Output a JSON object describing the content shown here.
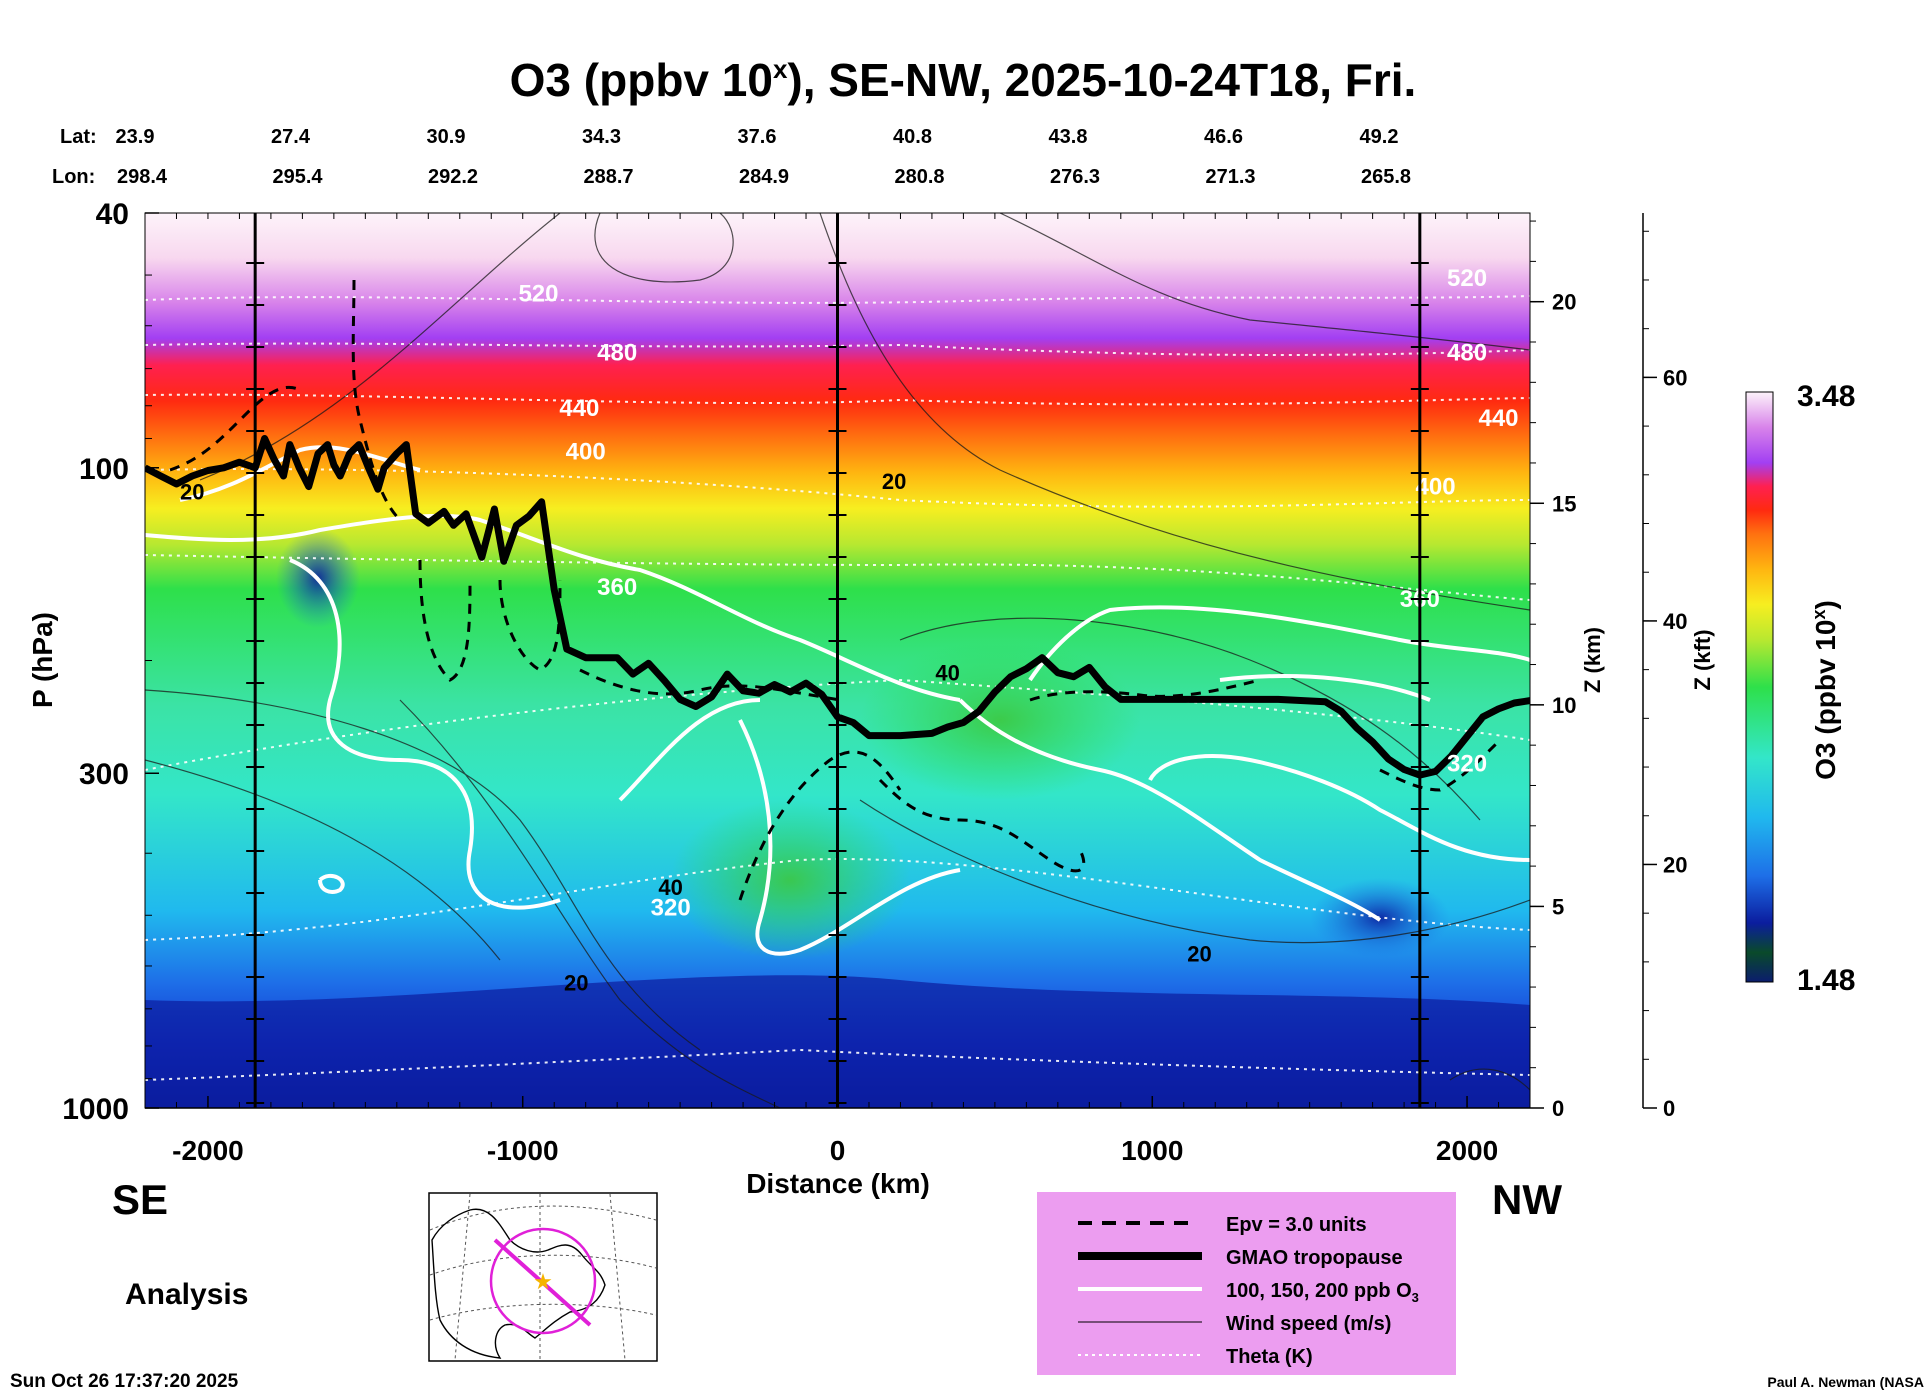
{
  "chart_data": {
    "type": "heatmap",
    "title": "O3 (ppbv 10",
    "title_sup": "x",
    "title_rest": "), SE-NW, 2025-10-24T18, Fri.",
    "xlabel": "Distance (km)",
    "ylabel": "P (hPa)",
    "y2label": "Z (km)",
    "y3label": "Z (kft)",
    "xlim": [
      -2200,
      2200
    ],
    "ylim_hpa": [
      1000,
      40
    ],
    "x_ticks": [
      {
        "value": -2000,
        "label": "-2000"
      },
      {
        "value": -1000,
        "label": "-1000"
      },
      {
        "value": 0,
        "label": "0"
      },
      {
        "value": 1000,
        "label": "1000"
      },
      {
        "value": 2000,
        "label": "2000"
      }
    ],
    "p_ticks": [
      {
        "value": 40,
        "label": "40"
      },
      {
        "value": 100,
        "label": "100"
      },
      {
        "value": 300,
        "label": "300"
      },
      {
        "value": 1000,
        "label": "1000"
      }
    ],
    "z_km_ticks": [
      {
        "value": 0,
        "label": "0"
      },
      {
        "value": 5,
        "label": "5"
      },
      {
        "value": 10,
        "label": "10"
      },
      {
        "value": 15,
        "label": "15"
      },
      {
        "value": 20,
        "label": "20"
      }
    ],
    "z_kft_ticks": [
      {
        "value": 0,
        "label": "0"
      },
      {
        "value": 20,
        "label": "20"
      },
      {
        "value": 40,
        "label": "40"
      },
      {
        "value": 60,
        "label": "60"
      }
    ],
    "lat_header": "Lat:",
    "lon_header": "Lon:",
    "lat": [
      "23.9",
      "27.4",
      "30.9",
      "34.3",
      "37.6",
      "40.8",
      "43.8",
      "46.6",
      "49.2"
    ],
    "lon": [
      "298.4",
      "295.4",
      "292.2",
      "288.7",
      "284.9",
      "280.8",
      "276.3",
      "271.3",
      "265.8"
    ],
    "vertical_markers_km": [
      -1850,
      0,
      1850
    ],
    "theta_labels": [
      {
        "x": -950,
        "p": 55,
        "label": "520"
      },
      {
        "x": -700,
        "p": 68,
        "label": "480"
      },
      {
        "x": -820,
        "p": 83,
        "label": "440"
      },
      {
        "x": -800,
        "p": 97,
        "label": "400"
      },
      {
        "x": -700,
        "p": 158,
        "label": "360"
      },
      {
        "x": -530,
        "p": 500,
        "label": "320"
      },
      {
        "x": 2000,
        "p": 52,
        "label": "520"
      },
      {
        "x": 2000,
        "p": 68,
        "label": "480"
      },
      {
        "x": 2100,
        "p": 86,
        "label": "440"
      },
      {
        "x": 1900,
        "p": 110,
        "label": "400"
      },
      {
        "x": 1850,
        "p": 165,
        "label": "360"
      },
      {
        "x": 2000,
        "p": 298,
        "label": "320"
      }
    ],
    "wind_labels": [
      {
        "x": -2050,
        "p": 112,
        "label": "20"
      },
      {
        "x": 180,
        "p": 108,
        "label": "20"
      },
      {
        "x": 350,
        "p": 215,
        "label": "40"
      },
      {
        "x": -530,
        "p": 465,
        "label": "40"
      },
      {
        "x": -830,
        "p": 655,
        "label": "20"
      },
      {
        "x": 1150,
        "p": 590,
        "label": "20"
      }
    ],
    "tropopause_hpa": [
      {
        "x": -2200,
        "p": 100
      },
      {
        "x": -2150,
        "p": 103
      },
      {
        "x": -2100,
        "p": 106
      },
      {
        "x": -2050,
        "p": 103
      },
      {
        "x": -2000,
        "p": 101
      },
      {
        "x": -1950,
        "p": 100
      },
      {
        "x": -1900,
        "p": 98
      },
      {
        "x": -1850,
        "p": 100
      },
      {
        "x": -1820,
        "p": 90
      },
      {
        "x": -1790,
        "p": 97
      },
      {
        "x": -1760,
        "p": 103
      },
      {
        "x": -1740,
        "p": 92
      },
      {
        "x": -1710,
        "p": 100
      },
      {
        "x": -1680,
        "p": 107
      },
      {
        "x": -1650,
        "p": 95
      },
      {
        "x": -1620,
        "p": 92
      },
      {
        "x": -1600,
        "p": 99
      },
      {
        "x": -1580,
        "p": 103
      },
      {
        "x": -1550,
        "p": 95
      },
      {
        "x": -1520,
        "p": 92
      },
      {
        "x": -1490,
        "p": 100
      },
      {
        "x": -1460,
        "p": 108
      },
      {
        "x": -1440,
        "p": 100
      },
      {
        "x": -1400,
        "p": 95
      },
      {
        "x": -1370,
        "p": 92
      },
      {
        "x": -1340,
        "p": 118
      },
      {
        "x": -1300,
        "p": 122
      },
      {
        "x": -1250,
        "p": 117
      },
      {
        "x": -1220,
        "p": 123
      },
      {
        "x": -1180,
        "p": 118
      },
      {
        "x": -1130,
        "p": 138
      },
      {
        "x": -1090,
        "p": 116
      },
      {
        "x": -1060,
        "p": 140
      },
      {
        "x": -1020,
        "p": 123
      },
      {
        "x": -980,
        "p": 119
      },
      {
        "x": -940,
        "p": 113
      },
      {
        "x": -900,
        "p": 155
      },
      {
        "x": -860,
        "p": 192
      },
      {
        "x": -800,
        "p": 198
      },
      {
        "x": -700,
        "p": 198
      },
      {
        "x": -650,
        "p": 210
      },
      {
        "x": -600,
        "p": 202
      },
      {
        "x": -550,
        "p": 215
      },
      {
        "x": -500,
        "p": 230
      },
      {
        "x": -450,
        "p": 236
      },
      {
        "x": -400,
        "p": 228
      },
      {
        "x": -350,
        "p": 210
      },
      {
        "x": -300,
        "p": 223
      },
      {
        "x": -250,
        "p": 225
      },
      {
        "x": -200,
        "p": 218
      },
      {
        "x": -150,
        "p": 224
      },
      {
        "x": -100,
        "p": 217
      },
      {
        "x": -50,
        "p": 226
      },
      {
        "x": 0,
        "p": 245
      },
      {
        "x": 50,
        "p": 250
      },
      {
        "x": 100,
        "p": 262
      },
      {
        "x": 200,
        "p": 262
      },
      {
        "x": 300,
        "p": 260
      },
      {
        "x": 350,
        "p": 254
      },
      {
        "x": 400,
        "p": 250
      },
      {
        "x": 450,
        "p": 240
      },
      {
        "x": 500,
        "p": 224
      },
      {
        "x": 550,
        "p": 212
      },
      {
        "x": 600,
        "p": 206
      },
      {
        "x": 650,
        "p": 198
      },
      {
        "x": 700,
        "p": 209
      },
      {
        "x": 750,
        "p": 212
      },
      {
        "x": 800,
        "p": 205
      },
      {
        "x": 850,
        "p": 220
      },
      {
        "x": 900,
        "p": 230
      },
      {
        "x": 1000,
        "p": 230
      },
      {
        "x": 1200,
        "p": 230
      },
      {
        "x": 1400,
        "p": 230
      },
      {
        "x": 1550,
        "p": 232
      },
      {
        "x": 1600,
        "p": 240
      },
      {
        "x": 1650,
        "p": 255
      },
      {
        "x": 1700,
        "p": 268
      },
      {
        "x": 1750,
        "p": 285
      },
      {
        "x": 1800,
        "p": 296
      },
      {
        "x": 1850,
        "p": 302
      },
      {
        "x": 1900,
        "p": 298
      },
      {
        "x": 1950,
        "p": 282
      },
      {
        "x": 2000,
        "p": 263
      },
      {
        "x": 2050,
        "p": 245
      },
      {
        "x": 2100,
        "p": 238
      },
      {
        "x": 2150,
        "p": 233
      },
      {
        "x": 2200,
        "p": 231
      }
    ],
    "colorbar": {
      "title": "O3 (ppbv 10",
      "title_sup": "x",
      "title_rest": ")",
      "max_label": "3.48",
      "min_label": "1.48",
      "range": [
        1.48,
        3.48
      ]
    },
    "legend": {
      "placement": "bottom-right",
      "entries": [
        {
          "label": "Epv = 3.0 units",
          "style": "dashed"
        },
        {
          "label": "GMAO tropopause",
          "style": "thick"
        },
        {
          "label": "100, 150, 200 ppb O",
          "sub": "3",
          "style": "white"
        },
        {
          "label": "Wind speed (m/s)",
          "style": "thin"
        },
        {
          "label": "Theta (K)",
          "style": "dotted"
        }
      ]
    },
    "direction_left": "SE",
    "direction_right": "NW",
    "mode_label": "Analysis",
    "timestamp": "Sun Oct 26 17:37:20 2025",
    "credit": "Paul A. Newman (NASA"
  },
  "colors": {
    "sky": "#fbe7f6",
    "violet": "#a23ff2",
    "red": "#ff2020",
    "orange": "#ff9a10",
    "yellow": "#f7ee20",
    "green": "#2ee04a",
    "teal": "#33e6c9",
    "blue": "#1e6fe8",
    "navy": "#0b1d9e",
    "legend_bg": "#ec9df0"
  }
}
